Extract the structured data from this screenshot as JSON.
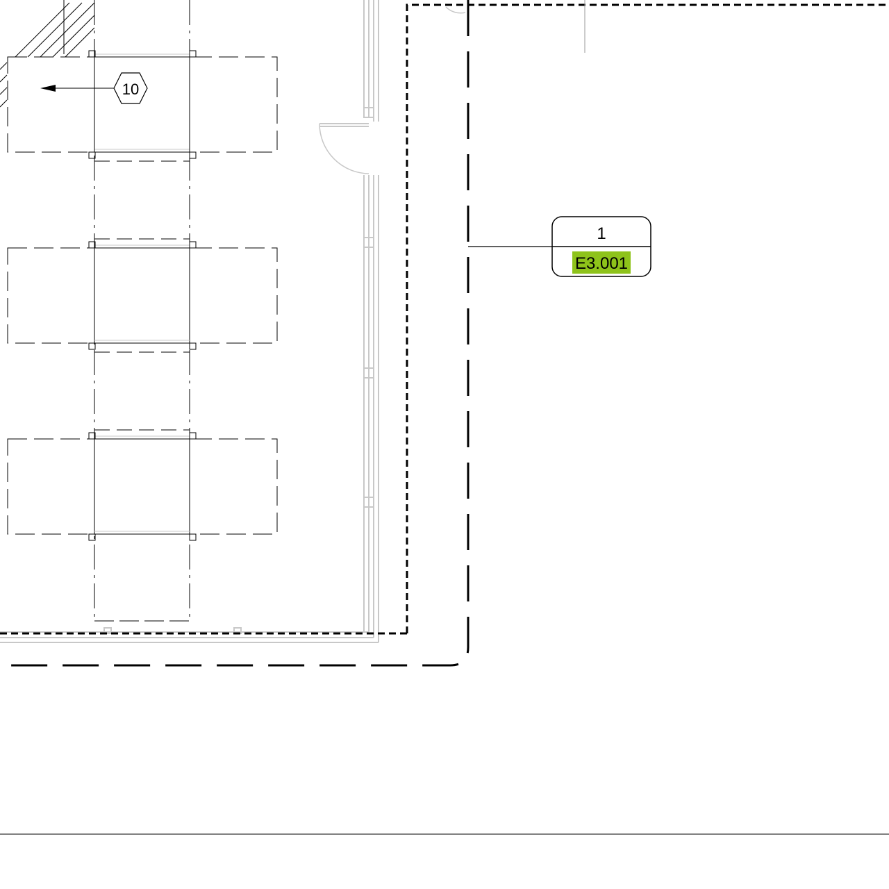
{
  "keynote_tag": {
    "value": "10"
  },
  "section_callout": {
    "detail_number": "1",
    "sheet_number": "E3.001",
    "sheet_highlight_color": "#8ec31a"
  },
  "colors": {
    "ink": "#000000",
    "wall": "#c8c8c8",
    "background": "#ffffff"
  }
}
